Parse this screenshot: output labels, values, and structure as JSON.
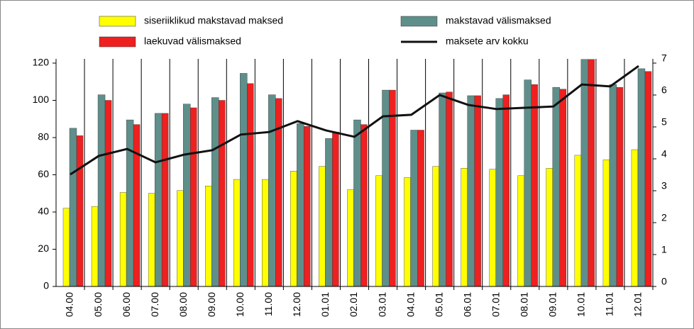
{
  "chart_data": {
    "type": "bar-line",
    "categories": [
      "04.00",
      "05.00",
      "06.00",
      "07.00",
      "08.00",
      "09.00",
      "10.00",
      "11.00",
      "12.00",
      "01.01",
      "02.01",
      "03.01",
      "04.01",
      "05.01",
      "06.01",
      "07.01",
      "08.01",
      "09.01",
      "10.01",
      "11.01",
      "12.01"
    ],
    "series": [
      {
        "name": "siseriiklikud makstavad maksed",
        "color": "#ffff00",
        "type": "bar",
        "values": [
          42,
          43,
          50.5,
          50,
          51.5,
          54,
          57.5,
          57.5,
          62,
          64.5,
          52,
          59.5,
          58.5,
          64.5,
          63.5,
          63,
          59.5,
          63.5,
          70.5,
          68,
          73.5
        ]
      },
      {
        "name": "makstavad välismaksed",
        "color": "#5f8f8a",
        "type": "bar",
        "values": [
          85,
          103,
          89.5,
          93,
          98,
          101.5,
          114.5,
          103,
          87.5,
          79.5,
          89.5,
          105.5,
          84,
          104,
          102.5,
          101,
          111,
          107,
          122,
          108.5,
          117
        ]
      },
      {
        "name": "laekuvad välismaksed",
        "color": "#ee2020",
        "type": "bar",
        "values": [
          81,
          100,
          87,
          93,
          96,
          100,
          109,
          101,
          86,
          83,
          87,
          105.5,
          84,
          104.5,
          102.5,
          103,
          108.5,
          106,
          122,
          107,
          115.5
        ]
      },
      {
        "name": "maksete arv kokku",
        "color": "#111111",
        "type": "line",
        "axis": "y2",
        "values": [
          3.51,
          4.09,
          4.31,
          3.89,
          4.13,
          4.27,
          4.76,
          4.84,
          5.18,
          4.89,
          4.69,
          5.33,
          5.38,
          6.0,
          5.69,
          5.56,
          5.6,
          5.64,
          6.33,
          6.27,
          6.91
        ]
      }
    ],
    "ylim": [
      0,
      120
    ],
    "yticks": [
      0,
      20,
      40,
      60,
      80,
      100,
      120
    ],
    "y2lim": [
      0,
      7
    ],
    "y2ticks": [
      0,
      1,
      2,
      3,
      4,
      5,
      6,
      7
    ],
    "grid": "x"
  }
}
